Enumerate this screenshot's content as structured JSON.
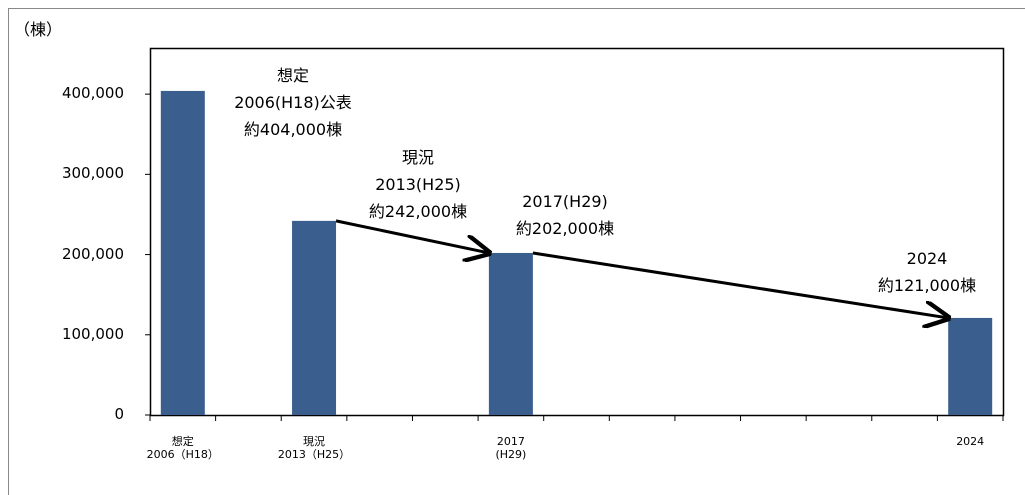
{
  "chart_data": {
    "type": "bar",
    "y_axis_label": "（棟）",
    "categories": [
      "想定\n2006（H18）",
      null,
      "現況\n2013（H25）",
      null,
      null,
      "2017\n(H29)",
      null,
      null,
      null,
      null,
      null,
      null,
      "2024"
    ],
    "values": [
      404000,
      null,
      242000,
      null,
      null,
      202000,
      null,
      null,
      null,
      null,
      null,
      null,
      121000
    ],
    "color": "#3a5f8f",
    "ylim": [
      0,
      460000
    ],
    "yticks": [
      0,
      {
        "value": 100000,
        "label": "100,000"
      },
      {
        "value": 200000,
        "label": "200,000"
      },
      {
        "value": 300000,
        "label": "300,000"
      },
      {
        "value": 400000,
        "label": "400,000"
      }
    ],
    "grid": false,
    "annotations": [
      "想定\n2006(H18)公表\n約404,000棟",
      "現況\n2013(H25)\n約242,000棟",
      "2017(H29)\n約202,000棟",
      "2024\n約121,000棟"
    ]
  }
}
